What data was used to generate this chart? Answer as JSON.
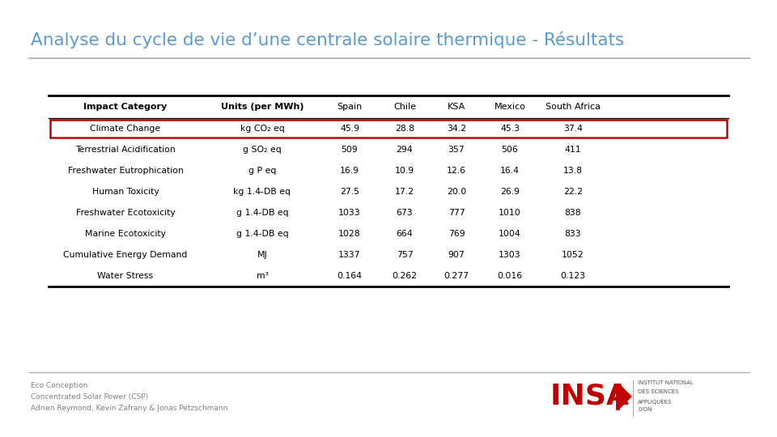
{
  "title": "Analyse du cycle de vie d’une centrale solaire thermique - Résultats",
  "title_color": "#5b9bd5",
  "background_color": "#ffffff",
  "col_headers": [
    "Impact Category",
    "Units (per MWh)",
    "Spain",
    "Chile",
    "KSA",
    "Mexico",
    "South Africa"
  ],
  "rows": [
    [
      "Climate Change",
      "kg CO₂ eq",
      "45.9",
      "28.8",
      "34.2",
      "45.3",
      "37.4"
    ],
    [
      "Terrestrial Acidification",
      "g SO₂ eq",
      "509",
      "294",
      "357",
      "506",
      "411"
    ],
    [
      "Freshwater Eutrophication",
      "g P eq",
      "16.9",
      "10.9",
      "12.6",
      "16.4",
      "13.8"
    ],
    [
      "Human Toxicity",
      "kg 1.4-DB eq",
      "27.5",
      "17.2",
      "20.0",
      "26.9",
      "22.2"
    ],
    [
      "Freshwater Ecotoxicity",
      "g 1.4-DB eq",
      "1033",
      "673",
      "777",
      "1010",
      "838"
    ],
    [
      "Marine Ecotoxicity",
      "g 1.4-DB eq",
      "1028",
      "664",
      "769",
      "1004",
      "833"
    ],
    [
      "Cumulative Energy Demand",
      "MJ",
      "1337",
      "757",
      "907",
      "1303",
      "1052"
    ],
    [
      "Water Stress",
      "m³",
      "0.164",
      "0.262",
      "0.277",
      "0.016",
      "0.123"
    ]
  ],
  "highlighted_row": 0,
  "highlight_color": "#c00000",
  "footer_lines": [
    "Eco Conception",
    "Concentrated Solar Power (CSP)",
    "Adrien Reymond, Kevin Zafrany & Jonas Petzschmann"
  ],
  "footer_color": "#808080",
  "separator_color": "#aaaaaa",
  "table_line_color": "#000000",
  "insa_text": [
    "INSTITUT NATIONAL",
    "DES SCIENCES",
    "APPLIQUÉES",
    "LYON"
  ],
  "insa_text_color": "#555555"
}
